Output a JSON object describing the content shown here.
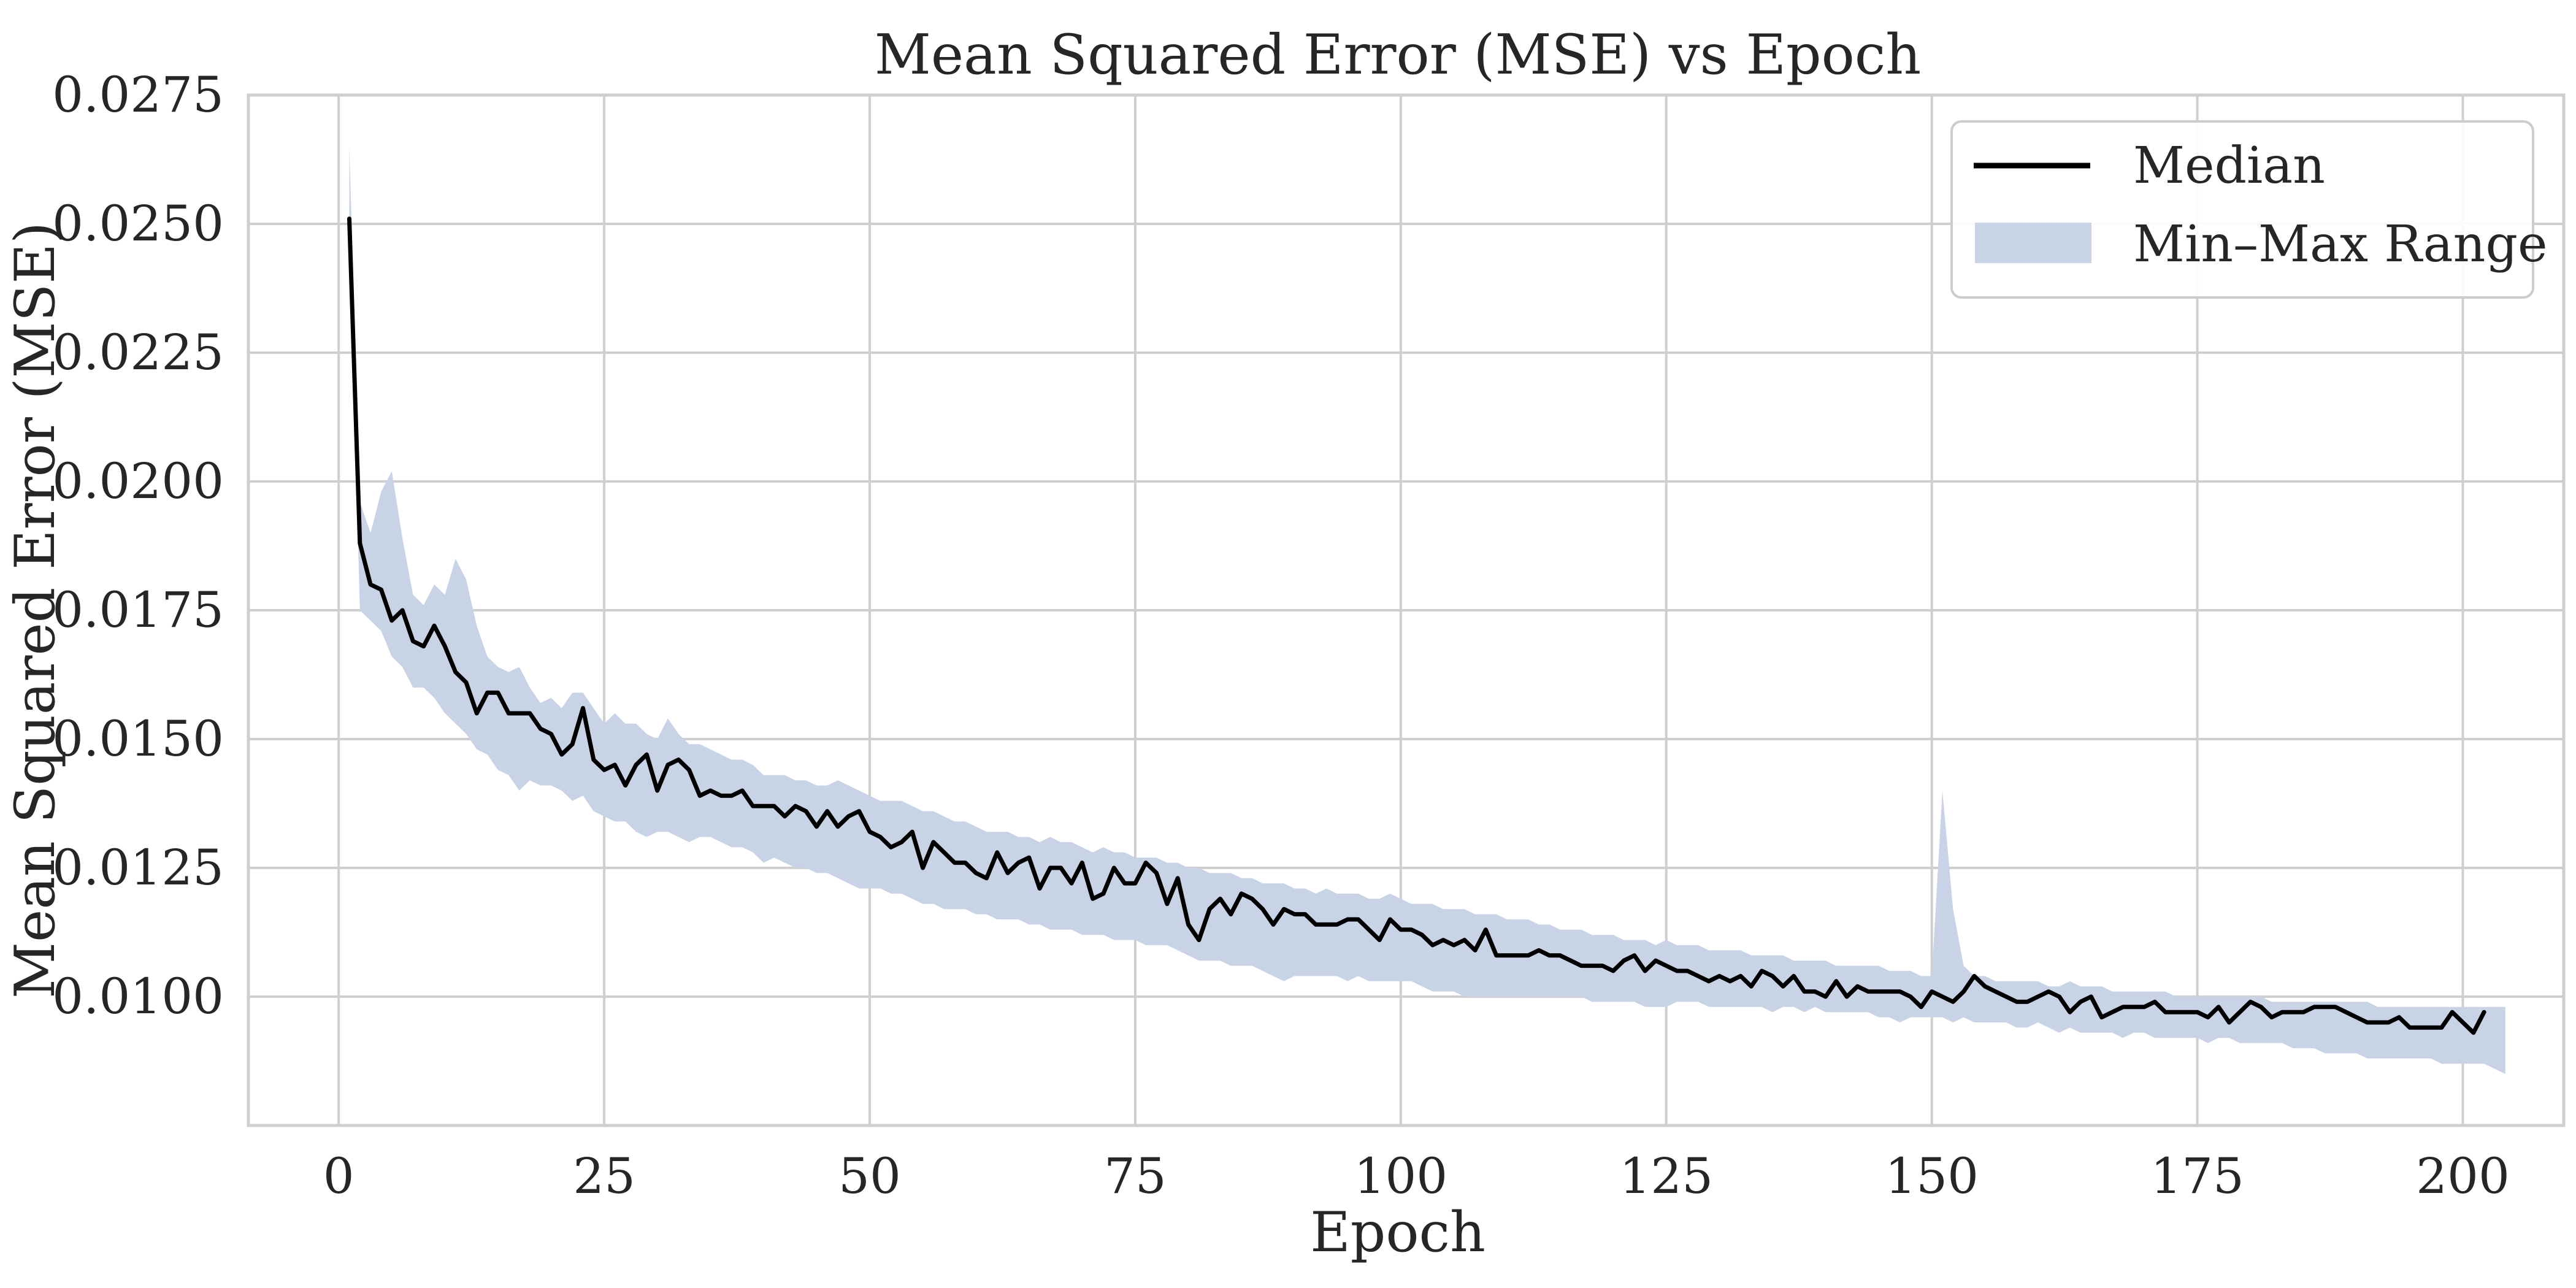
{
  "chart_data": {
    "type": "line",
    "title": "Mean Squared Error (MSE) vs Epoch",
    "xlabel": "Epoch",
    "ylabel": "Mean Squared Error (MSE)",
    "xlim": [
      -8.5,
      209.5
    ],
    "ylim": [
      0.0075,
      0.0275
    ],
    "xticks": [
      0,
      25,
      50,
      75,
      100,
      125,
      150,
      175,
      200
    ],
    "yticks": [
      0.01,
      0.0125,
      0.015,
      0.0175,
      0.02,
      0.0225,
      0.025,
      0.0275
    ],
    "ytick_decimals": 4,
    "grid": true,
    "legend": {
      "position": "top-right",
      "entries": [
        {
          "label": "Median",
          "kind": "line",
          "color": "#000000"
        },
        {
          "label": "Min–Max Range",
          "kind": "band",
          "color": "#c8d3e6"
        }
      ]
    },
    "colors": {
      "median": "#000000",
      "band": "#c8d3e6",
      "grid": "#cfcfcf",
      "frame": "#cfcfcf"
    },
    "series": [
      {
        "name": "Median",
        "x_start": 1,
        "x_step": 1,
        "values": [
          0.0251,
          0.0188,
          0.018,
          0.0179,
          0.0173,
          0.0175,
          0.0169,
          0.0168,
          0.0172,
          0.0168,
          0.0163,
          0.0161,
          0.0155,
          0.0159,
          0.0159,
          0.0155,
          0.0155,
          0.0155,
          0.0152,
          0.0151,
          0.0147,
          0.0149,
          0.0156,
          0.0146,
          0.0144,
          0.0145,
          0.0141,
          0.0145,
          0.0147,
          0.014,
          0.0145,
          0.0146,
          0.0144,
          0.0139,
          0.014,
          0.0139,
          0.0139,
          0.014,
          0.0137,
          0.0137,
          0.0137,
          0.0135,
          0.0137,
          0.0136,
          0.0133,
          0.0136,
          0.0133,
          0.0135,
          0.0136,
          0.0132,
          0.0131,
          0.0129,
          0.013,
          0.0132,
          0.0125,
          0.013,
          0.0128,
          0.0126,
          0.0126,
          0.0124,
          0.0123,
          0.0128,
          0.0124,
          0.0126,
          0.0127,
          0.0121,
          0.0125,
          0.0125,
          0.0122,
          0.0126,
          0.0119,
          0.012,
          0.0125,
          0.0122,
          0.0122,
          0.0126,
          0.0124,
          0.0118,
          0.0123,
          0.0114,
          0.0111,
          0.0117,
          0.0119,
          0.0116,
          0.012,
          0.0119,
          0.0117,
          0.0114,
          0.0117,
          0.0116,
          0.0116,
          0.0114,
          0.0114,
          0.0114,
          0.0115,
          0.0115,
          0.0113,
          0.0111,
          0.0115,
          0.0113,
          0.0113,
          0.0112,
          0.011,
          0.0111,
          0.011,
          0.0111,
          0.0109,
          0.0113,
          0.0108,
          0.0108,
          0.0108,
          0.0108,
          0.0109,
          0.0108,
          0.0108,
          0.0107,
          0.0106,
          0.0106,
          0.0106,
          0.0105,
          0.0107,
          0.0108,
          0.0105,
          0.0107,
          0.0106,
          0.0105,
          0.0105,
          0.0104,
          0.0103,
          0.0104,
          0.0103,
          0.0104,
          0.0102,
          0.0105,
          0.0104,
          0.0102,
          0.0104,
          0.0101,
          0.0101,
          0.01,
          0.0103,
          0.01,
          0.0102,
          0.0101,
          0.0101,
          0.0101,
          0.0101,
          0.01,
          0.0098,
          0.0101,
          0.01,
          0.0099,
          0.0101,
          0.0104,
          0.0102,
          0.0101,
          0.01,
          0.0099,
          0.0099,
          0.01,
          0.0101,
          0.01,
          0.0097,
          0.0099,
          0.01,
          0.0096,
          0.0097,
          0.0098,
          0.0098,
          0.0098,
          0.0099,
          0.0097,
          0.0097,
          0.0097,
          0.0097,
          0.0096,
          0.0098,
          0.0095,
          0.0097,
          0.0099,
          0.0098,
          0.0096,
          0.0097,
          0.0097,
          0.0097,
          0.0098,
          0.0098,
          0.0098,
          0.0097,
          0.0096,
          0.0095,
          0.0095,
          0.0095,
          0.0096,
          0.0094,
          0.0094,
          0.0094,
          0.0094,
          0.0097,
          0.0095,
          0.0093,
          0.0097
        ]
      },
      {
        "name": "Min–Max Range",
        "x_start": 1,
        "x_step": 1,
        "min": [
          0.0251,
          0.0175,
          0.0173,
          0.0171,
          0.0166,
          0.0164,
          0.016,
          0.016,
          0.0158,
          0.0155,
          0.0153,
          0.0151,
          0.0148,
          0.0147,
          0.0144,
          0.0143,
          0.014,
          0.0142,
          0.0141,
          0.0141,
          0.014,
          0.0138,
          0.0139,
          0.0136,
          0.0135,
          0.0134,
          0.0134,
          0.0132,
          0.0131,
          0.0132,
          0.0132,
          0.0131,
          0.013,
          0.0131,
          0.0131,
          0.013,
          0.0129,
          0.0129,
          0.0128,
          0.0126,
          0.0127,
          0.0126,
          0.0125,
          0.0125,
          0.0124,
          0.0124,
          0.0123,
          0.0122,
          0.0121,
          0.0121,
          0.0121,
          0.012,
          0.012,
          0.0119,
          0.0118,
          0.0118,
          0.0117,
          0.0117,
          0.0117,
          0.0116,
          0.0116,
          0.0115,
          0.0115,
          0.0115,
          0.0114,
          0.0114,
          0.0113,
          0.0113,
          0.0113,
          0.0112,
          0.0112,
          0.0112,
          0.0111,
          0.0111,
          0.0111,
          0.011,
          0.011,
          0.011,
          0.0109,
          0.0108,
          0.0107,
          0.0107,
          0.0107,
          0.0106,
          0.0106,
          0.0106,
          0.0105,
          0.0104,
          0.0103,
          0.0104,
          0.0104,
          0.0104,
          0.0104,
          0.0104,
          0.0103,
          0.0104,
          0.0103,
          0.0103,
          0.0103,
          0.0103,
          0.0103,
          0.0102,
          0.0101,
          0.0101,
          0.0101,
          0.01,
          0.01,
          0.01,
          0.01,
          0.01,
          0.01,
          0.01,
          0.01,
          0.01,
          0.01,
          0.01,
          0.01,
          0.0099,
          0.0099,
          0.0099,
          0.0099,
          0.0099,
          0.0098,
          0.0098,
          0.0098,
          0.0099,
          0.0099,
          0.0099,
          0.0098,
          0.0098,
          0.0098,
          0.0098,
          0.0098,
          0.0098,
          0.0097,
          0.0098,
          0.0098,
          0.0097,
          0.0098,
          0.0097,
          0.0097,
          0.0097,
          0.0097,
          0.0097,
          0.0096,
          0.0096,
          0.0095,
          0.0096,
          0.0096,
          0.0096,
          0.0096,
          0.0095,
          0.0096,
          0.0095,
          0.0095,
          0.0095,
          0.0095,
          0.0094,
          0.0094,
          0.0095,
          0.0094,
          0.0093,
          0.0094,
          0.0093,
          0.0093,
          0.0093,
          0.0093,
          0.0092,
          0.0093,
          0.0093,
          0.0092,
          0.0092,
          0.0092,
          0.0092,
          0.0092,
          0.0091,
          0.0092,
          0.0092,
          0.0091,
          0.0091,
          0.0091,
          0.0091,
          0.0091,
          0.009,
          0.009,
          0.009,
          0.0089,
          0.0089,
          0.0089,
          0.0089,
          0.0088,
          0.0088,
          0.0088,
          0.0088,
          0.0088,
          0.0088,
          0.0088,
          0.0087,
          0.0087,
          0.0087,
          0.0087,
          0.0087,
          0.0086,
          0.0085
        ],
        "max": [
          0.0265,
          0.0196,
          0.019,
          0.0198,
          0.0202,
          0.0189,
          0.0178,
          0.0176,
          0.018,
          0.0178,
          0.0185,
          0.0181,
          0.0172,
          0.0166,
          0.0164,
          0.0163,
          0.0164,
          0.016,
          0.0157,
          0.0158,
          0.0156,
          0.0159,
          0.0159,
          0.0156,
          0.0153,
          0.0155,
          0.0153,
          0.0153,
          0.0151,
          0.015,
          0.0154,
          0.0151,
          0.0149,
          0.0149,
          0.0148,
          0.0147,
          0.0146,
          0.0146,
          0.0145,
          0.0143,
          0.0143,
          0.0143,
          0.0142,
          0.0142,
          0.0141,
          0.0141,
          0.0142,
          0.0141,
          0.014,
          0.0139,
          0.0138,
          0.0138,
          0.0138,
          0.0137,
          0.0136,
          0.0136,
          0.0135,
          0.0134,
          0.0134,
          0.0133,
          0.0132,
          0.0132,
          0.0132,
          0.0131,
          0.0131,
          0.013,
          0.0131,
          0.013,
          0.013,
          0.0129,
          0.0128,
          0.0129,
          0.0128,
          0.0128,
          0.0127,
          0.0127,
          0.0127,
          0.0126,
          0.0126,
          0.0125,
          0.0125,
          0.0124,
          0.0124,
          0.0124,
          0.0123,
          0.0123,
          0.0122,
          0.0122,
          0.0122,
          0.0121,
          0.0121,
          0.012,
          0.0121,
          0.012,
          0.012,
          0.012,
          0.0119,
          0.0119,
          0.012,
          0.0119,
          0.0118,
          0.0118,
          0.0118,
          0.0117,
          0.0117,
          0.0117,
          0.0116,
          0.0116,
          0.0116,
          0.0115,
          0.0115,
          0.0115,
          0.0114,
          0.0114,
          0.0113,
          0.0113,
          0.0113,
          0.0112,
          0.0112,
          0.0112,
          0.0111,
          0.0111,
          0.0111,
          0.011,
          0.0111,
          0.011,
          0.011,
          0.011,
          0.0109,
          0.0109,
          0.0109,
          0.0109,
          0.0108,
          0.0108,
          0.0108,
          0.0108,
          0.0107,
          0.0107,
          0.0107,
          0.0107,
          0.0106,
          0.0106,
          0.0106,
          0.0106,
          0.0106,
          0.0105,
          0.0105,
          0.0105,
          0.0104,
          0.0104,
          0.014,
          0.0117,
          0.0106,
          0.0104,
          0.0104,
          0.0103,
          0.0103,
          0.0103,
          0.0103,
          0.0103,
          0.0102,
          0.0102,
          0.0103,
          0.0102,
          0.0102,
          0.0102,
          0.0101,
          0.0101,
          0.0101,
          0.0101,
          0.0101,
          0.0101,
          0.01,
          0.01,
          0.01,
          0.01,
          0.01,
          0.01,
          0.01,
          0.01,
          0.01,
          0.0099,
          0.0099,
          0.0099,
          0.0099,
          0.0099,
          0.0099,
          0.0099,
          0.0099,
          0.0099,
          0.0099,
          0.0098,
          0.0098,
          0.0098,
          0.0098,
          0.0098,
          0.0098,
          0.0098,
          0.0098,
          0.0098,
          0.0098,
          0.0098,
          0.0098,
          0.0098
        ]
      }
    ]
  }
}
